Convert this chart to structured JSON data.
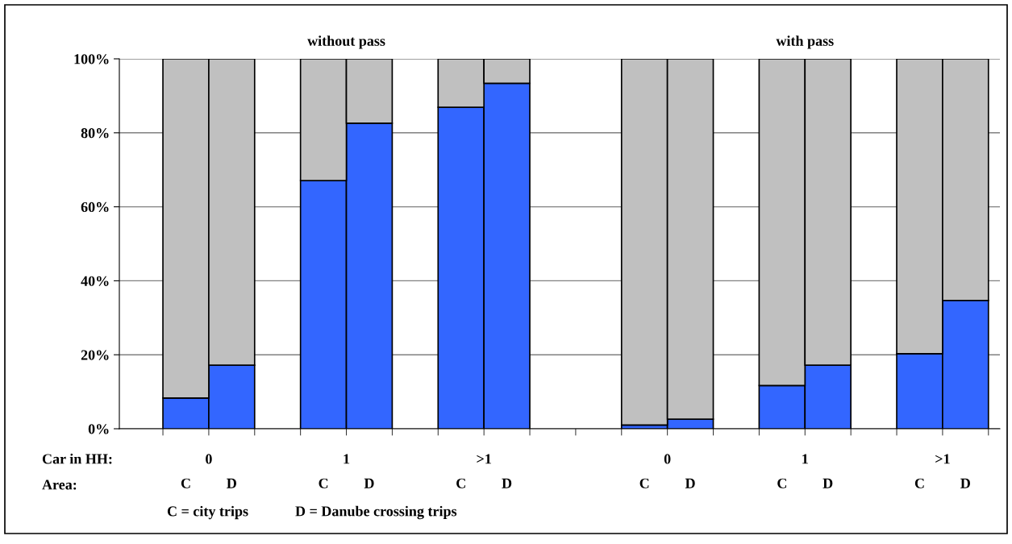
{
  "chart_data": {
    "type": "bar",
    "stacked": true,
    "categories": [
      "C",
      "D",
      null,
      "C",
      "D",
      null,
      "C",
      "D",
      null,
      null,
      "C",
      "D",
      null,
      "C",
      "D",
      null,
      "C",
      "D"
    ],
    "series": [
      {
        "color": "#3366ff",
        "values": [
          8.3,
          17.2,
          null,
          67.1,
          82.6,
          null,
          86.9,
          93.4,
          null,
          null,
          1.0,
          2.6,
          null,
          11.7,
          17.2,
          null,
          20.3,
          34.7
        ]
      },
      {
        "color": "#c0c0c0",
        "values": [
          91.7,
          82.8,
          null,
          32.9,
          17.4,
          null,
          13.1,
          6.6,
          null,
          null,
          99.0,
          97.4,
          null,
          88.3,
          82.8,
          null,
          79.7,
          65.3
        ]
      }
    ],
    "ylim": [
      0,
      100
    ],
    "yticks": [
      {
        "value": 0,
        "label": "0%"
      },
      {
        "value": 20,
        "label": "20%"
      },
      {
        "value": 40,
        "label": "40%"
      },
      {
        "value": 60,
        "label": "60%"
      },
      {
        "value": 80,
        "label": "80%"
      },
      {
        "value": 100,
        "label": "100%"
      }
    ],
    "grid": "y",
    "legend": false,
    "annotations": [
      "without pass",
      "with pass",
      "Car in HH:",
      "0",
      "1",
      ">1",
      "0",
      "1",
      ">1",
      "Area:",
      "C = city trips",
      "D = Danube crossing trips"
    ]
  }
}
